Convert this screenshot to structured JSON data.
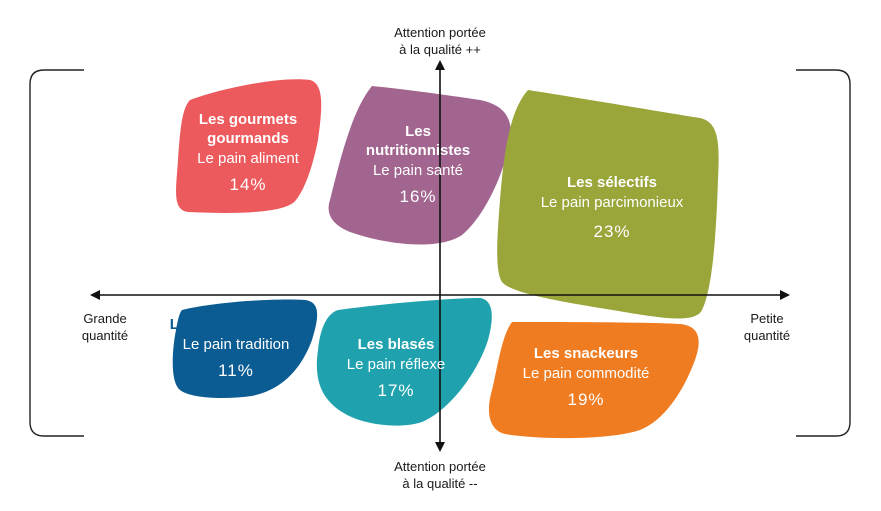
{
  "axes": {
    "top": [
      "Attention portée",
      "à la qualité ++"
    ],
    "bottom": [
      "Attention portée",
      "à la qualité --"
    ],
    "left": [
      "Grande",
      "quantité"
    ],
    "right": [
      "Petite",
      "quantité"
    ]
  },
  "segments": [
    {
      "name": [
        "Les gourmets",
        "gourmands"
      ],
      "subtitle": "Le pain aliment",
      "percent": "14%",
      "color": "#ed5a5d"
    },
    {
      "name": [
        "Les",
        "nutritionnistes"
      ],
      "subtitle": "Le pain santé",
      "percent": "16%",
      "color": "#a1658f"
    },
    {
      "name": [
        "Les sélectifs"
      ],
      "subtitle": "Le pain parcimonieux",
      "percent": "23%",
      "color": "#9aa53a"
    },
    {
      "name": [
        "Les conservateurs"
      ],
      "subtitle": "Le pain tradition",
      "percent": "11%",
      "color": "#0a5c92"
    },
    {
      "name": [
        "Les blasés"
      ],
      "subtitle": "Le pain réflexe",
      "percent": "17%",
      "color": "#20a2ae"
    },
    {
      "name": [
        "Les snackeurs"
      ],
      "subtitle": "Le pain commodité",
      "percent": "19%",
      "color": "#f07c22"
    }
  ]
}
